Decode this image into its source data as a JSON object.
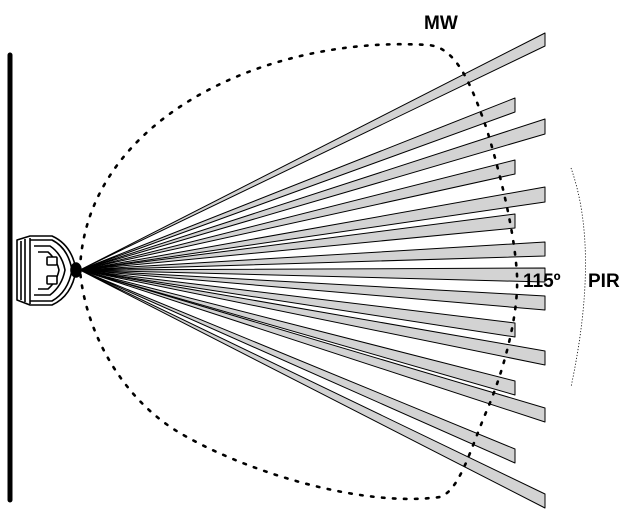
{
  "labels": {
    "mw": "MW",
    "pir_angle": "115º",
    "pir": "PIR"
  },
  "colors": {
    "beam_fill": "#d3d3d3",
    "stroke": "#000000",
    "background": "#ffffff"
  }
}
